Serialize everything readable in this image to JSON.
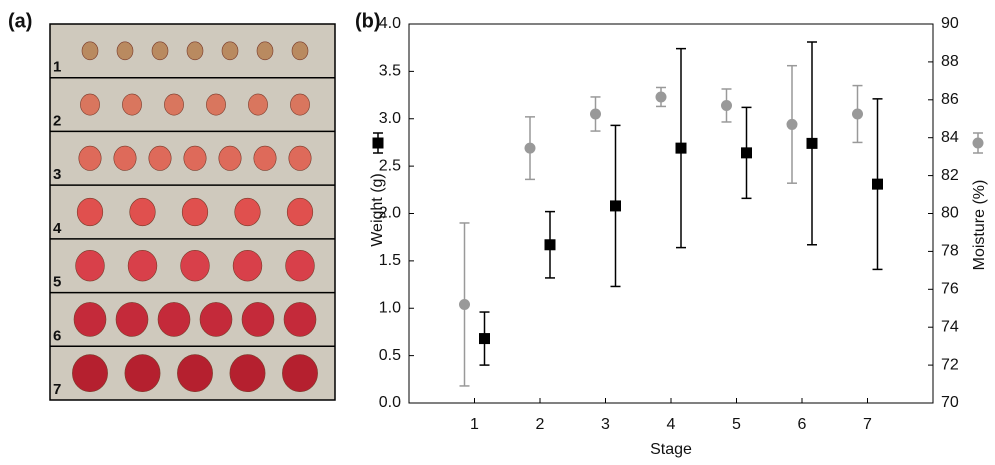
{
  "panel_a": {
    "label": "(a)",
    "rows": [
      "1",
      "2",
      "3",
      "4",
      "5",
      "6",
      "7"
    ]
  },
  "chart_data": {
    "type": "errorbar",
    "panel_label": "(b)",
    "xlabel": "Stage",
    "ylabel": "Weight (g)",
    "y2label": "Moisture (%)",
    "x": [
      1,
      2,
      3,
      4,
      5,
      6,
      7
    ],
    "xlim": [
      0,
      8
    ],
    "xticks": [
      1,
      2,
      3,
      4,
      5,
      6,
      7
    ],
    "ylim": [
      0,
      4
    ],
    "yticks": [
      {
        "value": 0,
        "label": "0.0"
      },
      0.5,
      {
        "value": 1,
        "label": "1.0"
      },
      1.5,
      {
        "value": 2,
        "label": "2.0"
      },
      2.5,
      {
        "value": 3,
        "label": "3.0"
      },
      3.5,
      {
        "value": 4,
        "label": "4.0"
      }
    ],
    "y2lim": [
      70,
      90
    ],
    "y2ticks": [
      70,
      72,
      74,
      76,
      78,
      80,
      82,
      84,
      86,
      88,
      90
    ],
    "series": [
      {
        "marker": "square",
        "color": "#000000",
        "values": [
          0.68,
          1.67,
          2.08,
          2.69,
          2.64,
          2.74,
          2.31
        ],
        "errors": [
          0.28,
          0.35,
          0.85,
          1.05,
          0.48,
          1.07,
          0.9
        ]
      },
      {
        "marker": "circle",
        "color": "#999999",
        "axis": "y2",
        "values": [
          75.2,
          83.45,
          85.25,
          86.15,
          85.7,
          84.7,
          85.25
        ],
        "errors": [
          4.3,
          1.65,
          0.9,
          0.5,
          0.87,
          3.1,
          1.5
        ]
      }
    ]
  }
}
